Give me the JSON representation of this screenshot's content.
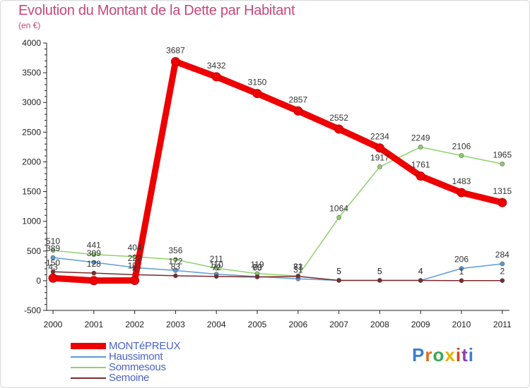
{
  "title": "Evolution du Montant de la Dette par Habitant",
  "subtitle": "(en €)",
  "logo": {
    "text": "Proxiti",
    "colors": [
      "#3b7fd1",
      "#e06d1e",
      "#3aa655",
      "#e7b400",
      "#d9431f",
      "#8b3fb3",
      "#3b7fd1"
    ]
  },
  "chart_data": {
    "type": "line",
    "title": "Evolution du Montant de la Dette par Habitant",
    "subtitle": "(en €)",
    "xlabel": "",
    "ylabel": "",
    "ylim": [
      -500,
      4000
    ],
    "yticks": [
      "-500",
      "0",
      "500",
      "1000",
      "1500",
      "2000",
      "2500",
      "3000",
      "3500",
      "4000"
    ],
    "ytick_values": [
      -500,
      0,
      500,
      1000,
      1500,
      2000,
      2500,
      3000,
      3500,
      4000
    ],
    "x": [
      "2000",
      "2001",
      "2002",
      "2003",
      "2004",
      "2005",
      "2006",
      "2007",
      "2008",
      "2009",
      "2010",
      "2011"
    ],
    "grid": false,
    "legend": "bottom-left",
    "series": [
      {
        "name": "Sommesous",
        "color": "#8fd16a",
        "values": [
          510,
          441,
          404,
          356,
          211,
          119,
          81,
          1064,
          1917,
          2249,
          2106,
          1965
        ],
        "labels": [
          "510",
          "441",
          "404",
          "356",
          "211",
          "119",
          "81",
          "1064",
          "1917",
          "2249",
          "2106",
          "1965"
        ]
      },
      {
        "name": "Haussimont",
        "color": "#5b9bd5",
        "values": [
          389,
          309,
          222,
          172,
          110,
          70,
          31,
          5,
          5,
          4,
          206,
          284
        ],
        "labels": [
          "389",
          "309",
          "222",
          "172",
          "110",
          "70",
          "31",
          "5",
          "5",
          "4",
          "206",
          "284"
        ]
      },
      {
        "name": "Semoine",
        "color": "#7b2a2a",
        "values": [
          150,
          128,
          101,
          83,
          72,
          63,
          73,
          5,
          5,
          4,
          1,
          2
        ],
        "labels": [
          "150",
          "128",
          "101",
          "83",
          "72",
          "63",
          "73",
          "5",
          "5",
          "4",
          "1",
          "2"
        ]
      },
      {
        "name": "MONTéPREUX",
        "color": "#ee0000",
        "values": [
          43,
          2,
          4,
          3687,
          3432,
          3150,
          2857,
          2552,
          2234,
          1761,
          1483,
          1315
        ],
        "labels": [
          "43",
          "",
          "4",
          "3687",
          "3432",
          "3150",
          "2857",
          "2552",
          "2234",
          "1761",
          "1483",
          "1315"
        ]
      }
    ],
    "legend_entries": [
      {
        "name": "MONTéPREUX",
        "color": "#ee0000"
      },
      {
        "name": "Haussimont",
        "color": "#5b9bd5"
      },
      {
        "name": "Sommesous",
        "color": "#8fd16a"
      },
      {
        "name": "Semoine",
        "color": "#7b2a2a"
      }
    ]
  }
}
